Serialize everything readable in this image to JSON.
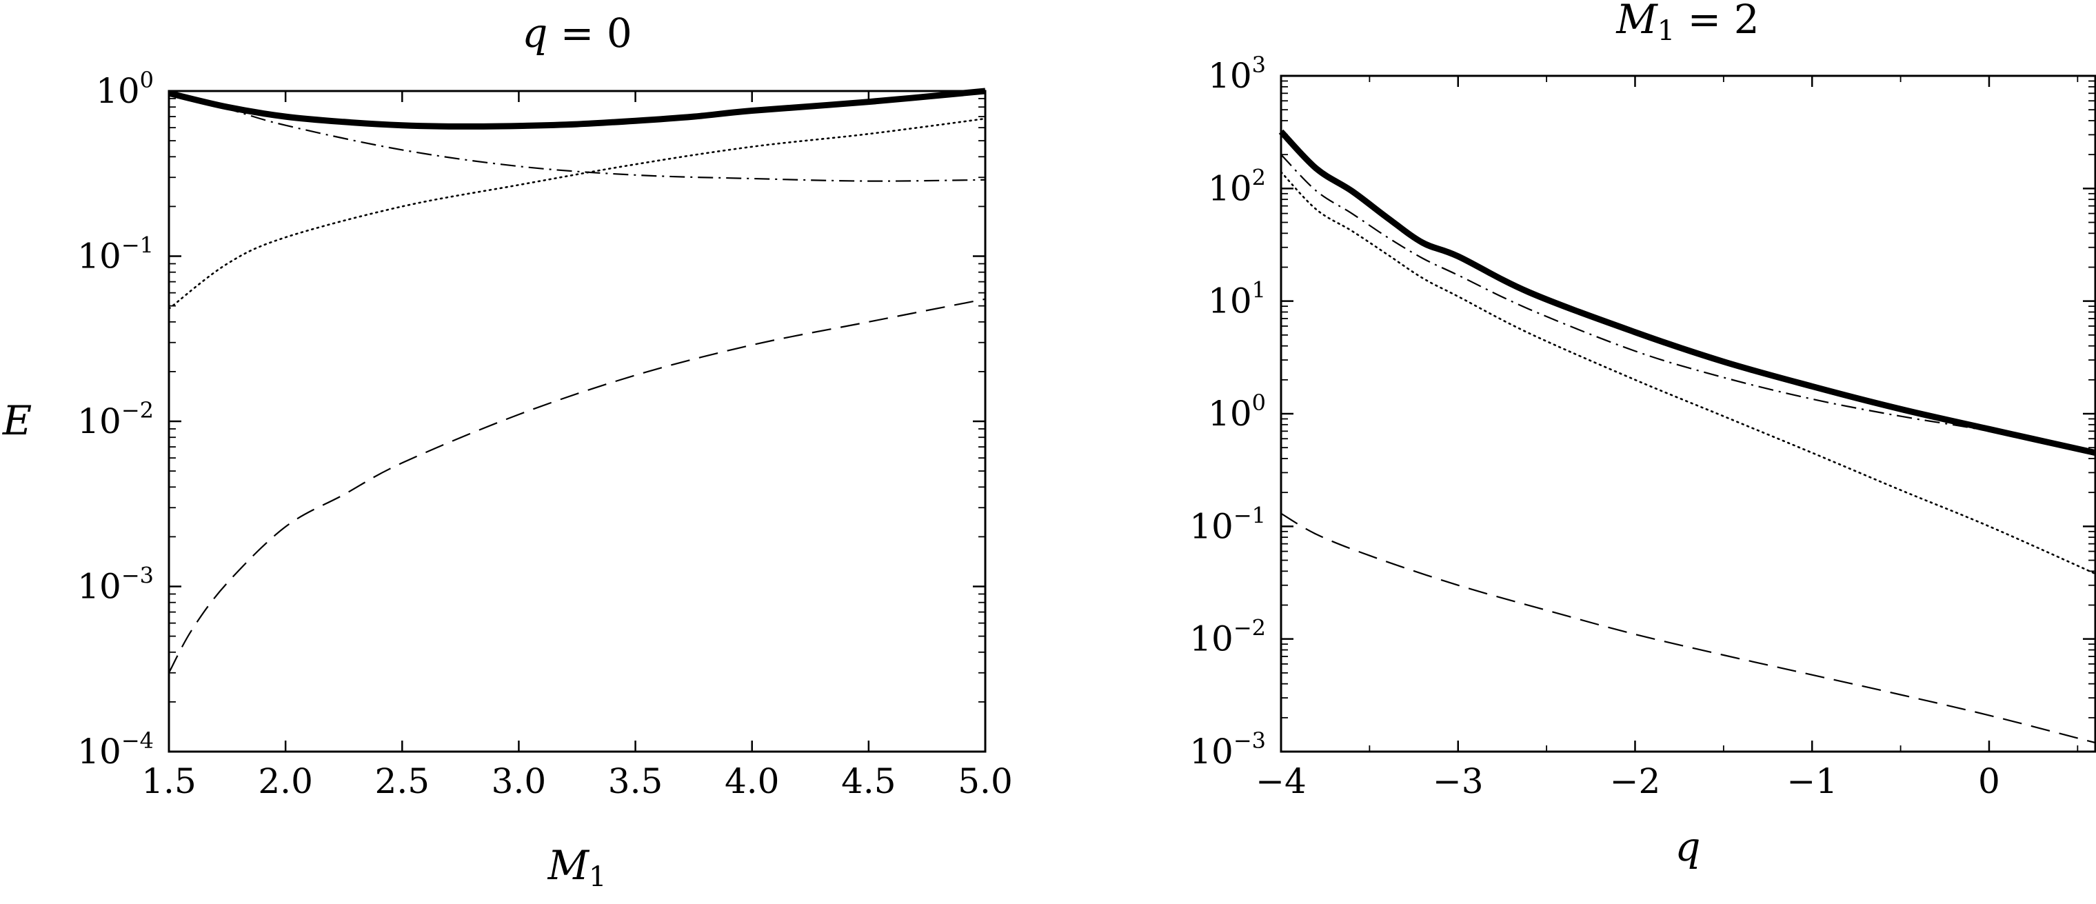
{
  "chart_data": [
    {
      "type": "line",
      "title": "q = 0",
      "title_parts": {
        "var": "q",
        "rest": " = 0"
      },
      "xlabel": "M1",
      "xlabel_parts": {
        "main": "M",
        "sub": "1"
      },
      "ylabel": "E",
      "xlim": [
        1.5,
        5.0
      ],
      "ylim": [
        0.0001,
        1
      ],
      "yscale": "log",
      "x_ticks": [
        1.5,
        2.0,
        2.5,
        3.0,
        3.5,
        4.0,
        4.5,
        5.0
      ],
      "x_tick_labels": [
        "1.5",
        "2.0",
        "2.5",
        "3.0",
        "3.5",
        "4.0",
        "4.5",
        "5.0"
      ],
      "y_ticks": [
        1,
        0.1,
        0.01,
        0.001,
        0.0001
      ],
      "y_tick_labels": [
        {
          "base": "10",
          "exp": "0"
        },
        {
          "base": "10",
          "exp": "−1"
        },
        {
          "base": "10",
          "exp": "−2"
        },
        {
          "base": "10",
          "exp": "−3"
        },
        {
          "base": "10",
          "exp": "−4"
        }
      ],
      "grid": false,
      "series": [
        {
          "style": "solid-thick",
          "x": [
            1.5,
            1.75,
            2.0,
            2.25,
            2.5,
            2.75,
            3.0,
            3.25,
            3.5,
            3.75,
            4.0,
            4.5,
            5.0
          ],
          "y": [
            0.97,
            0.8,
            0.7,
            0.65,
            0.62,
            0.61,
            0.615,
            0.63,
            0.66,
            0.7,
            0.76,
            0.86,
            1.0
          ]
        },
        {
          "style": "dash-dot",
          "x": [
            1.5,
            1.75,
            2.0,
            2.5,
            3.0,
            3.5,
            4.0,
            4.5,
            5.0
          ],
          "y": [
            0.95,
            0.78,
            0.62,
            0.44,
            0.35,
            0.31,
            0.295,
            0.285,
            0.29
          ]
        },
        {
          "style": "dotted",
          "x": [
            1.5,
            1.75,
            2.0,
            2.5,
            3.0,
            3.5,
            4.0,
            4.5,
            5.0
          ],
          "y": [
            0.048,
            0.09,
            0.13,
            0.2,
            0.27,
            0.36,
            0.46,
            0.55,
            0.68
          ]
        },
        {
          "style": "dashed",
          "x": [
            1.5,
            1.6,
            1.75,
            2.0,
            2.25,
            2.5,
            3.0,
            3.5,
            4.0,
            4.5,
            5.0
          ],
          "y": [
            0.0003,
            0.00055,
            0.00105,
            0.0023,
            0.0036,
            0.0056,
            0.011,
            0.019,
            0.029,
            0.04,
            0.055
          ]
        }
      ]
    },
    {
      "type": "line",
      "title": "M1 = 2",
      "title_parts": {
        "main": "M",
        "sub": "1",
        "rest": " = 2"
      },
      "xlabel": "q",
      "ylabel": "",
      "xlim": [
        -4.0,
        0.6
      ],
      "ylim": [
        0.001,
        1000
      ],
      "yscale": "log",
      "x_ticks": [
        -4,
        -3,
        -2,
        -1,
        0
      ],
      "x_tick_labels": [
        "−4",
        "−3",
        "−2",
        "−1",
        "0"
      ],
      "y_ticks": [
        1000,
        100,
        10,
        1,
        0.1,
        0.01,
        0.001
      ],
      "y_tick_labels": [
        {
          "base": "10",
          "exp": "3"
        },
        {
          "base": "10",
          "exp": "2"
        },
        {
          "base": "10",
          "exp": "1"
        },
        {
          "base": "10",
          "exp": "0"
        },
        {
          "base": "10",
          "exp": "−1"
        },
        {
          "base": "10",
          "exp": "−2"
        },
        {
          "base": "10",
          "exp": "−3"
        }
      ],
      "grid": false,
      "series": [
        {
          "style": "solid-thick",
          "x": [
            -4.0,
            -3.8,
            -3.6,
            -3.4,
            -3.2,
            -3.0,
            -2.6,
            -2.0,
            -1.5,
            -1.0,
            -0.5,
            0.0,
            0.6
          ],
          "y": [
            320,
            150,
            95,
            55,
            33,
            25,
            12,
            5.3,
            2.9,
            1.75,
            1.1,
            0.73,
            0.45
          ]
        },
        {
          "style": "dash-dot",
          "x": [
            -4.0,
            -3.8,
            -3.6,
            -3.4,
            -3.2,
            -3.0,
            -2.6,
            -2.0,
            -1.5,
            -1.0,
            -0.5,
            0.0,
            0.6
          ],
          "y": [
            200,
            95,
            60,
            37,
            24,
            17,
            8.5,
            3.6,
            2.1,
            1.35,
            0.95,
            0.7,
            0.43
          ]
        },
        {
          "style": "dotted",
          "x": [
            -4.0,
            -3.8,
            -3.6,
            -3.4,
            -3.2,
            -3.0,
            -2.6,
            -2.0,
            -1.5,
            -1.0,
            -0.5,
            0.0,
            0.6
          ],
          "y": [
            140,
            65,
            42,
            26,
            16,
            11,
            5.2,
            2.0,
            0.95,
            0.45,
            0.21,
            0.1,
            0.038
          ]
        },
        {
          "style": "dashed",
          "x": [
            -4.0,
            -3.8,
            -3.5,
            -3.0,
            -2.5,
            -2.0,
            -1.5,
            -1.0,
            -0.5,
            0.0,
            0.6
          ],
          "y": [
            0.13,
            0.085,
            0.055,
            0.03,
            0.018,
            0.011,
            0.0072,
            0.0048,
            0.0032,
            0.0021,
            0.0012
          ]
        }
      ]
    }
  ]
}
